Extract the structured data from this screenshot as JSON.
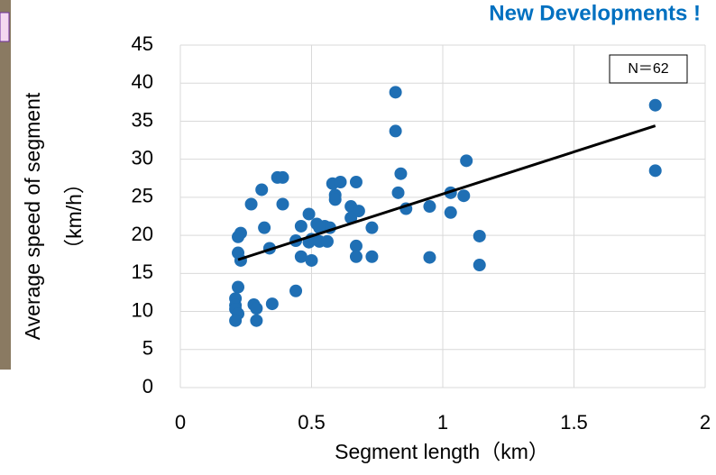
{
  "chart_data": {
    "type": "scatter",
    "title": "New Developments !",
    "xlabel": "Segment length（km）",
    "ylabel": [
      "Average speed of segment",
      "（km/h）"
    ],
    "annotation": "N＝62",
    "color": "#1f6fb4",
    "x": [
      0.82,
      0.82,
      1.81,
      1.81,
      0.84,
      1.09,
      0.37,
      0.39,
      0.31,
      0.58,
      0.61,
      0.67,
      0.59,
      0.59,
      0.83,
      1.03,
      1.08,
      0.27,
      0.39,
      0.65,
      0.68,
      0.86,
      0.95,
      1.03,
      0.49,
      0.46,
      0.52,
      0.55,
      0.65,
      0.32,
      0.23,
      0.22,
      0.5,
      0.44,
      0.49,
      0.53,
      0.56,
      0.57,
      0.73,
      1.14,
      0.34,
      0.22,
      0.23,
      0.46,
      0.5,
      0.67,
      0.67,
      0.73,
      0.95,
      1.14,
      0.22,
      0.44,
      0.21,
      0.21,
      0.21,
      0.22,
      0.28,
      0.29,
      0.35,
      0.21,
      0.29,
      0.53
    ],
    "values": [
      38.8,
      33.7,
      37.1,
      28.5,
      28.1,
      29.8,
      27.6,
      27.6,
      26.0,
      26.8,
      27.0,
      27.0,
      25.3,
      24.7,
      25.6,
      25.6,
      25.2,
      24.1,
      24.1,
      23.8,
      23.2,
      23.5,
      23.8,
      23.0,
      22.8,
      21.2,
      21.5,
      21.2,
      22.3,
      21.0,
      20.3,
      19.8,
      19.5,
      19.3,
      19.1,
      19.2,
      19.2,
      21.0,
      21.0,
      19.9,
      18.3,
      17.7,
      16.7,
      17.2,
      16.7,
      18.6,
      17.2,
      17.2,
      17.1,
      16.1,
      13.2,
      12.7,
      11.7,
      10.8,
      10.3,
      9.7,
      10.9,
      10.4,
      11.0,
      8.8,
      8.8,
      21.0
    ],
    "trendline": {
      "x": [
        0.22,
        1.81
      ],
      "values": [
        16.8,
        34.4
      ],
      "color": "#000000"
    },
    "xlim": [
      0,
      2
    ],
    "xticks": [
      0,
      0.5,
      1,
      1.5,
      2
    ],
    "ylim": [
      0,
      45
    ],
    "yticks": [
      0,
      5,
      10,
      15,
      20,
      25,
      30,
      35,
      40,
      45
    ],
    "grid": true
  }
}
